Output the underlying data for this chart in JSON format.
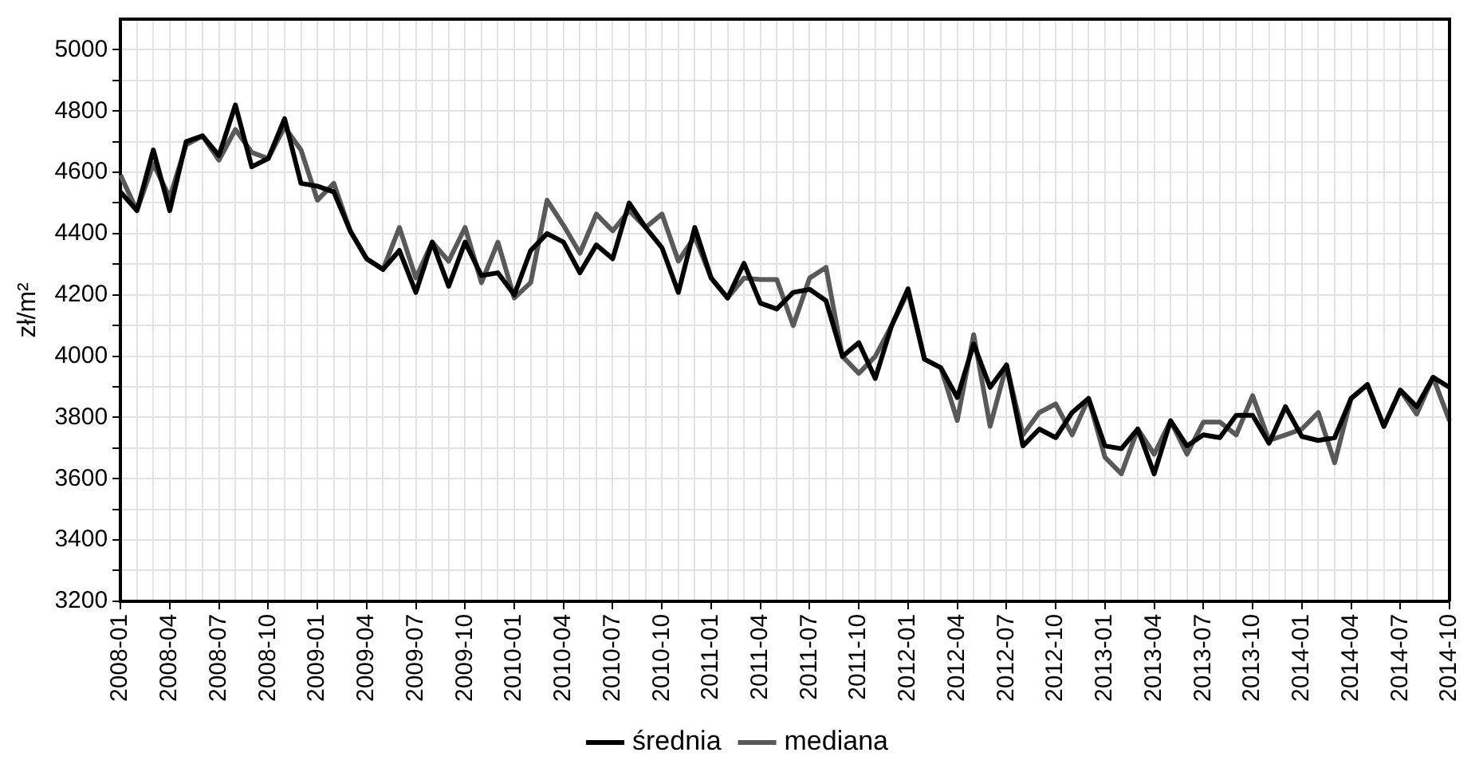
{
  "chart_data": {
    "type": "line",
    "ylabel": "zł/m²",
    "categories": [
      "2008-01",
      null,
      null,
      "2008-04",
      null,
      null,
      "2008-07",
      null,
      null,
      "2008-10",
      null,
      null,
      "2009-01",
      null,
      null,
      "2009-04",
      null,
      null,
      "2009-07",
      null,
      null,
      "2009-10",
      null,
      null,
      "2010-01",
      null,
      null,
      "2010-04",
      null,
      null,
      "2010-07",
      null,
      null,
      "2010-10",
      null,
      null,
      "2011-01",
      null,
      null,
      "2011-04",
      null,
      null,
      "2011-07",
      null,
      null,
      "2011-10",
      null,
      null,
      "2012-01",
      null,
      null,
      "2012-04",
      null,
      null,
      "2012-07",
      null,
      null,
      "2012-10",
      null,
      null,
      "2013-01",
      null,
      null,
      "2013-04",
      null,
      null,
      "2013-07",
      null,
      null,
      "2013-10",
      null,
      null,
      "2014-01",
      null,
      null,
      "2014-04",
      null,
      null,
      "2014-07",
      null,
      null,
      "2014-10"
    ],
    "series": [
      {
        "name": "średnia",
        "color": "#000000",
        "values": [
          4536,
          4475,
          4673,
          4475,
          4700,
          4719,
          4655,
          4820,
          4618,
          4645,
          4775,
          4564,
          4555,
          4536,
          4409,
          4318,
          4283,
          4345,
          4208,
          4372,
          4228,
          4372,
          4263,
          4272,
          4200,
          4345,
          4400,
          4372,
          4272,
          4363,
          4318,
          4500,
          4420,
          4354,
          4208,
          4420,
          4255,
          4190,
          4303,
          4173,
          4154,
          4208,
          4218,
          4181,
          3999,
          4044,
          3927,
          4100,
          4220,
          3990,
          3962,
          3865,
          4040,
          3898,
          3971,
          3707,
          3762,
          3734,
          3816,
          3862,
          3707,
          3698,
          3762,
          3616,
          3789,
          3707,
          3743,
          3734,
          3807,
          3807,
          3716,
          3835,
          3738,
          3725,
          3734,
          3862,
          3907,
          3771,
          3889,
          3835,
          3931,
          3898
        ]
      },
      {
        "name": "mediana",
        "color": "#595959",
        "values": [
          4591,
          4475,
          4628,
          4518,
          4690,
          4719,
          4640,
          4740,
          4665,
          4645,
          4748,
          4673,
          4509,
          4564,
          4409,
          4318,
          4283,
          4420,
          4255,
          4372,
          4310,
          4420,
          4240,
          4372,
          4190,
          4240,
          4509,
          4427,
          4336,
          4464,
          4409,
          4475,
          4420,
          4464,
          4310,
          4390,
          4255,
          4190,
          4255,
          4250,
          4250,
          4100,
          4255,
          4290,
          3999,
          3944,
          3999,
          4100,
          4210,
          3990,
          3962,
          3790,
          4070,
          3771,
          3971,
          3743,
          3816,
          3844,
          3743,
          3862,
          3670,
          3616,
          3762,
          3680,
          3789,
          3680,
          3785,
          3785,
          3743,
          3871,
          3725,
          3743,
          3762,
          3816,
          3652,
          3862,
          3907,
          3771,
          3889,
          3811,
          3931,
          3789
        ]
      }
    ],
    "ylim": [
      3200,
      5100
    ],
    "yticks": [
      3200,
      {
        "value": 3300,
        "label": null
      },
      3400,
      {
        "value": 3500,
        "label": null
      },
      3600,
      {
        "value": 3700,
        "label": null
      },
      3800,
      {
        "value": 3900,
        "label": null
      },
      4000,
      {
        "value": 4100,
        "label": null
      },
      4200,
      {
        "value": 4300,
        "label": null
      },
      4400,
      {
        "value": 4500,
        "label": null
      },
      4600,
      {
        "value": 4700,
        "label": null
      },
      4800,
      {
        "value": 4900,
        "label": null
      },
      5000
    ],
    "grid": true,
    "legend": "bottom",
    "marker": "none",
    "line_style": "solid"
  }
}
